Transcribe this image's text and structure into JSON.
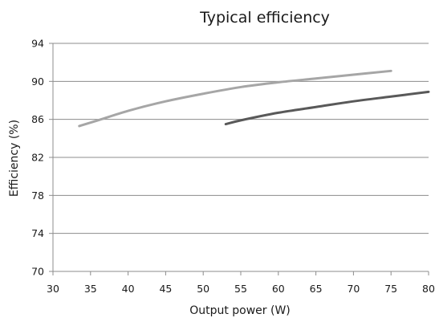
{
  "chart_data": {
    "type": "line",
    "title": "Typical efficiency",
    "xlabel": "Output power (W)",
    "ylabel": "Efficiency (%)",
    "xlim": [
      30,
      80
    ],
    "ylim": [
      70,
      94
    ],
    "xticks": [
      30,
      35,
      40,
      45,
      50,
      55,
      60,
      65,
      70,
      75,
      80
    ],
    "yticks": [
      70,
      74,
      78,
      82,
      86,
      90,
      94
    ],
    "grid": "horizontal",
    "legend": "none",
    "series": [
      {
        "color": "#a6a6a6",
        "points": [
          [
            33.5,
            85.3
          ],
          [
            36,
            85.9
          ],
          [
            40,
            86.9
          ],
          [
            45,
            87.9
          ],
          [
            50,
            88.7
          ],
          [
            55,
            89.4
          ],
          [
            60,
            89.9
          ],
          [
            65,
            90.3
          ],
          [
            70,
            90.7
          ],
          [
            75,
            91.1
          ]
        ]
      },
      {
        "color": "#595959",
        "points": [
          [
            53,
            85.5
          ],
          [
            55,
            85.9
          ],
          [
            60,
            86.7
          ],
          [
            65,
            87.3
          ],
          [
            70,
            87.9
          ],
          [
            75,
            88.4
          ],
          [
            80,
            88.9
          ]
        ]
      }
    ]
  }
}
